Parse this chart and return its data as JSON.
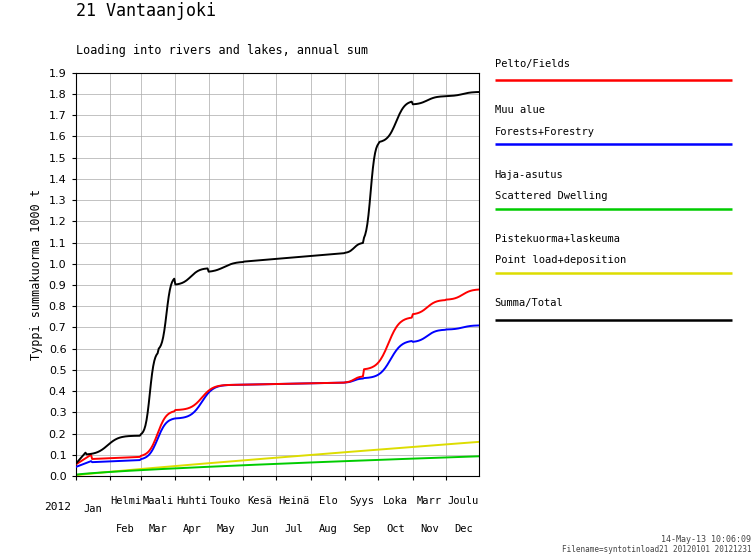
{
  "title": "21 Vantaanjoki",
  "subtitle": "Loading into rivers and lakes, annual sum",
  "ylabel": "Typpi summakuorma 1000 t",
  "ylim": [
    0,
    1.9
  ],
  "yticks": [
    0.0,
    0.1,
    0.2,
    0.3,
    0.4,
    0.5,
    0.6,
    0.7,
    0.8,
    0.9,
    1.0,
    1.1,
    1.2,
    1.3,
    1.4,
    1.5,
    1.6,
    1.7,
    1.8,
    1.9
  ],
  "month_days": [
    1,
    32,
    60,
    91,
    121,
    152,
    182,
    213,
    244,
    274,
    305,
    335,
    366
  ],
  "month_labels_en": [
    "Jan",
    "Feb",
    "Mar",
    "Apr",
    "May",
    "Jun",
    "Jul",
    "Aug",
    "Sep",
    "Oct",
    "Nov",
    "Dec"
  ],
  "month_labels_fi": [
    "Helmi",
    "Maali",
    "Huhti",
    "Touko",
    "Kesä",
    "Heinä",
    "Elo",
    "Syys",
    "Loka",
    "Marr",
    "Joulu"
  ],
  "legend": [
    {
      "label1": "Pelto/Fields",
      "label2": "",
      "color": "#ff0000"
    },
    {
      "label1": "Muu alue",
      "label2": "Forests+Forestry",
      "color": "#0000ff"
    },
    {
      "label1": "Haja-asutus",
      "label2": "Scattered Dwelling",
      "color": "#00cc00"
    },
    {
      "label1": "Pistekuorma+laskeuma",
      "label2": "Point load+deposition",
      "color": "#dddd00"
    },
    {
      "label1": "Summa/Total",
      "label2": "",
      "color": "#000000"
    }
  ],
  "background_color": "#ffffff",
  "grid_color": "#aaaaaa",
  "timestamp": "14-May-13 10:06:09",
  "filename": "Filename=syntotinload21 20120101 20121231"
}
